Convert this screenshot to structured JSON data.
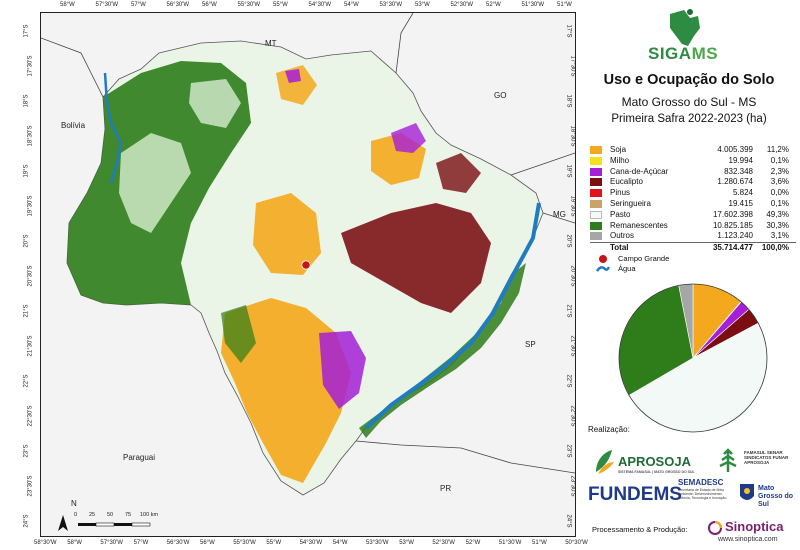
{
  "map": {
    "ticks_top": [
      "58°W",
      "57°30'W",
      "57°W",
      "56°30'W",
      "56°W",
      "55°30'W",
      "55°W",
      "54°30'W",
      "54°W",
      "53°30'W",
      "53°W",
      "52°30'W",
      "52°W",
      "51°30'W",
      "51°W"
    ],
    "ticks_bottom": [
      "58°30'W",
      "58°W",
      "57°30'W",
      "57°W",
      "56°30'W",
      "56°W",
      "55°30'W",
      "55°W",
      "54°30'W",
      "54°W",
      "53°30'W",
      "53°W",
      "52°30'W",
      "52°W",
      "51°30'W",
      "51°W",
      "50°30'W"
    ],
    "ticks_left": [
      "17°S",
      "17°30'S",
      "18°S",
      "18°30'S",
      "19°S",
      "19°30'S",
      "20°S",
      "20°30'S",
      "21°S",
      "21°30'S",
      "22°S",
      "22°30'S",
      "23°S",
      "23°30'S",
      "24°S"
    ],
    "ticks_right": [
      "17°S",
      "17°30'S",
      "18°S",
      "18°30'S",
      "19°S",
      "19°30'S",
      "20°S",
      "20°30'S",
      "21°S",
      "21°30'S",
      "22°S",
      "22°30'S",
      "23°S",
      "23°30'S",
      "24°S"
    ],
    "region_labels": {
      "mt": "MT",
      "go": "GO",
      "mg": "MG",
      "sp": "SP",
      "pr": "PR",
      "bolivia": "Bolívia",
      "paraguai": "Paraguai"
    },
    "north_label": "N",
    "scale_ticks": [
      "0",
      "25",
      "50",
      "75",
      "100 km"
    ]
  },
  "brand": {
    "logo_left": "SIGA",
    "logo_right": "MS"
  },
  "title": "Uso e Ocupação do Solo",
  "subtitle": "Mato Grosso do Sul - MS",
  "season": "Primeira Safra 2022-2023 (ha)",
  "legend": {
    "items": [
      {
        "name": "Soja",
        "area": "4.005.399",
        "pct": "11,2%",
        "color": "#f4a81d"
      },
      {
        "name": "Milho",
        "area": "19.994",
        "pct": "0,1%",
        "color": "#f7df1e"
      },
      {
        "name": "Cana-de-Açúcar",
        "area": "832.348",
        "pct": "2,3%",
        "color": "#a51fd6"
      },
      {
        "name": "Eucalipto",
        "area": "1.280.674",
        "pct": "3,6%",
        "color": "#7a0e10"
      },
      {
        "name": "Pinus",
        "area": "5.824",
        "pct": "0,0%",
        "color": "#e0151b"
      },
      {
        "name": "Seringueira",
        "area": "19.415",
        "pct": "0,1%",
        "color": "#c9a368"
      },
      {
        "name": "Pasto",
        "area": "17.602.398",
        "pct": "49,3%",
        "color": "#f2f9f6"
      },
      {
        "name": "Remanescentes",
        "area": "10.825.185",
        "pct": "30,3%",
        "color": "#2e7d1a"
      },
      {
        "name": "Outros",
        "area": "1.123.240",
        "pct": "3,1%",
        "color": "#a6a6a6"
      }
    ],
    "total": {
      "name": "Total",
      "area": "35.714.477",
      "pct": "100,0%"
    }
  },
  "markers": {
    "city": "Campo Grande",
    "water": "Água",
    "city_color": "#c81414",
    "water_color": "#1f7bc2"
  },
  "pie_data": {
    "type": "pie",
    "start_angle_deg": 0,
    "slices": [
      {
        "label": "Soja",
        "value": 11.2,
        "color": "#f4a81d"
      },
      {
        "label": "Milho",
        "value": 0.1,
        "color": "#f7df1e"
      },
      {
        "label": "Cana-de-Açúcar",
        "value": 2.3,
        "color": "#a51fd6"
      },
      {
        "label": "Eucalipto",
        "value": 3.6,
        "color": "#7a0e10"
      },
      {
        "label": "Pinus",
        "value": 0.0,
        "color": "#e0151b"
      },
      {
        "label": "Seringueira",
        "value": 0.1,
        "color": "#c9a368"
      },
      {
        "label": "Pasto",
        "value": 49.3,
        "color": "#f2f9f6"
      },
      {
        "label": "Remanescentes",
        "value": 30.3,
        "color": "#2e7d1a"
      },
      {
        "label": "Outros",
        "value": 3.1,
        "color": "#a6a6a6"
      }
    ]
  },
  "credits": {
    "realizacao": "Realização:",
    "aprosoja": "APROSOJA",
    "aprosoja_sub": "SISTEMA FAMASUL | MATO GROSSO DO SUL",
    "famasul": "FAMASUL SENAR SINDICATOS FUNAR APROSOJA",
    "fundems": "FUNDEMS",
    "semadesc": "SEMADESC",
    "semadesc_sub": "Secretaria de Estado de Meio Ambiente, Desenvolvimento, Ciência, Tecnologia e Inovação",
    "governo": "Mato Grosso do Sul",
    "processamento": "Processamento & Produção:",
    "sinoptica": "Sinoptica",
    "sinoptica_url": "www.sinoptica.com"
  }
}
